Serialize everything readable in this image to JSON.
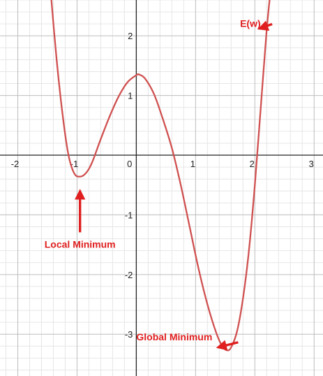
{
  "chart_data": {
    "type": "line",
    "title": "",
    "xlabel": "",
    "ylabel": "",
    "xlim": [
      -2.3,
      3.15
    ],
    "ylim": [
      -3.7,
      2.6
    ],
    "grid": true,
    "grid_minor_step": 0.2,
    "x_ticks": [
      {
        "value": -2,
        "label": "-2"
      },
      {
        "value": -1,
        "label": "-1"
      },
      {
        "value": 0,
        "label": "0"
      },
      {
        "value": 1,
        "label": "1"
      },
      {
        "value": 2,
        "label": "2"
      },
      {
        "value": 3,
        "label": "3"
      }
    ],
    "y_ticks": [
      {
        "value": -3,
        "label": "-3"
      },
      {
        "value": -2,
        "label": "-2"
      },
      {
        "value": -1,
        "label": "-1"
      },
      {
        "value": 1,
        "label": "1"
      },
      {
        "value": 2,
        "label": "2"
      }
    ],
    "series": [
      {
        "color": "#d05050",
        "points": [
          [
            -1.45,
            2.8
          ],
          [
            -1.35,
            1.66
          ],
          [
            -1.25,
            0.73
          ],
          [
            -1.15,
            0.03
          ],
          [
            -1.05,
            -0.3
          ],
          [
            -0.95,
            -0.36
          ],
          [
            -0.85,
            -0.3
          ],
          [
            -0.75,
            -0.13
          ],
          [
            -0.6,
            0.27
          ],
          [
            -0.45,
            0.65
          ],
          [
            -0.3,
            0.98
          ],
          [
            -0.15,
            1.22
          ],
          [
            0.0,
            1.34
          ],
          [
            0.05,
            1.35
          ],
          [
            0.15,
            1.28
          ],
          [
            0.3,
            1.02
          ],
          [
            0.45,
            0.6
          ],
          [
            0.6,
            0.12
          ],
          [
            0.75,
            -0.5
          ],
          [
            0.9,
            -1.2
          ],
          [
            1.05,
            -1.9
          ],
          [
            1.2,
            -2.5
          ],
          [
            1.35,
            -2.98
          ],
          [
            1.45,
            -3.2
          ],
          [
            1.53,
            -3.27
          ],
          [
            1.6,
            -3.22
          ],
          [
            1.7,
            -2.95
          ],
          [
            1.8,
            -2.4
          ],
          [
            1.9,
            -1.6
          ],
          [
            2.0,
            -0.5
          ],
          [
            2.1,
            0.8
          ],
          [
            2.2,
            2.1
          ],
          [
            2.27,
            2.8
          ]
        ]
      }
    ],
    "annotations": [
      {
        "text": "E(w)",
        "x": 1.75,
        "y": 2.15,
        "target": [
          2.08,
          2.12
        ],
        "color": "#e02020"
      },
      {
        "text": "Local Minimum",
        "x": -0.95,
        "y": -1.55,
        "target": [
          -0.95,
          -0.6
        ],
        "color": "#e02020"
      },
      {
        "text": "Global Minimum",
        "x": 0.0,
        "y": -3.1,
        "target": [
          1.38,
          -3.22
        ],
        "color": "#e02020"
      }
    ]
  }
}
